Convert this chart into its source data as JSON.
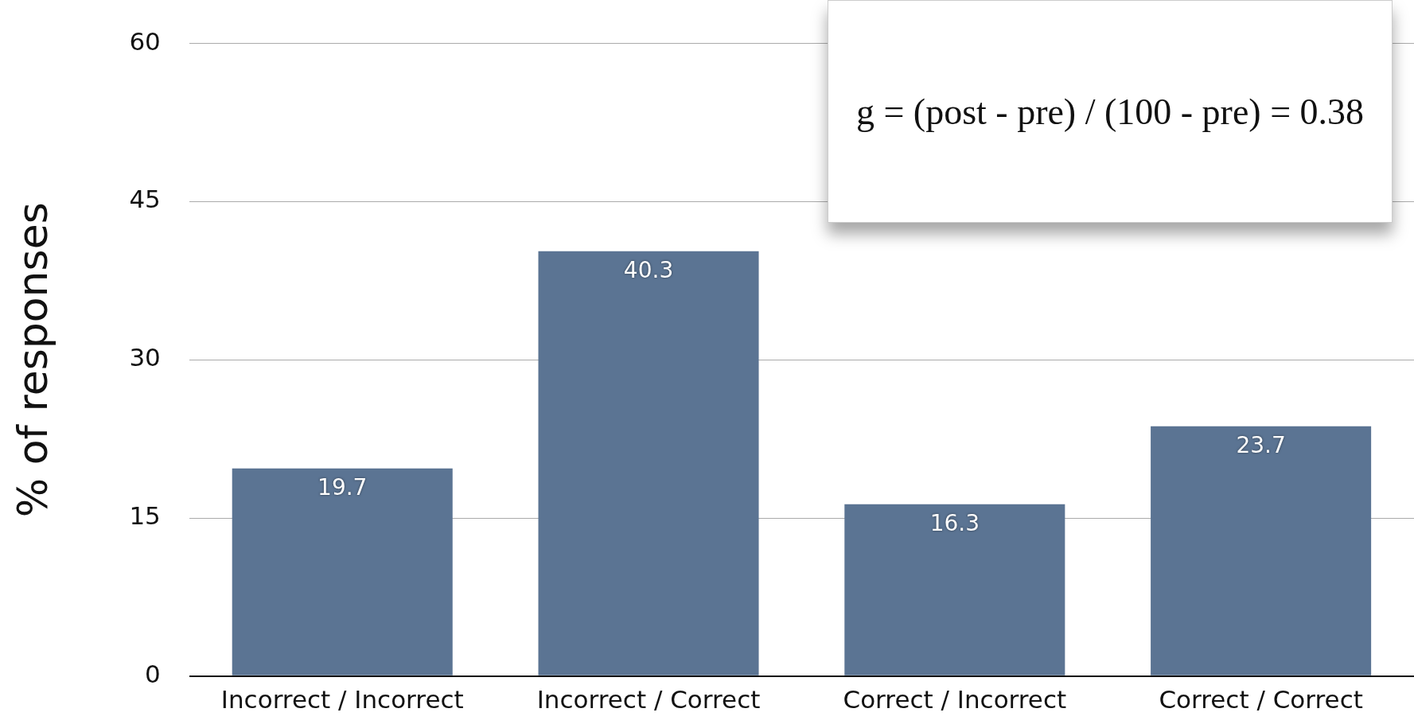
{
  "chart_data": {
    "type": "bar",
    "ylabel": "% of responses",
    "categories": [
      "Incorrect / Incorrect",
      "Incorrect / Correct",
      "Correct / Incorrect",
      "Correct / Correct"
    ],
    "values": [
      19.7,
      40.3,
      16.3,
      23.7
    ],
    "color": "#5b7493",
    "ylim": [
      0,
      60
    ],
    "yticks": [
      0,
      15,
      30,
      45,
      60
    ],
    "grid": "y",
    "data_labels": true,
    "annotations": [
      "g = (post - pre) / (100 - pre) = 0.38"
    ]
  }
}
